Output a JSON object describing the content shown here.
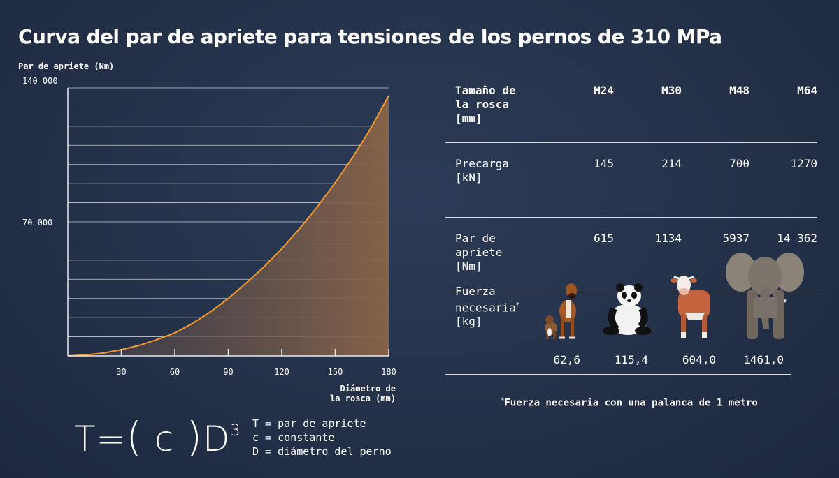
{
  "title": "Curva del par de apriete para tensiones de los pernos de 310 MPa",
  "chart_data": {
    "type": "area",
    "title": "Curva del par de apriete para tensiones de los pernos de 310 MPa",
    "ylabel": "Par de apriete (Nm)",
    "xlabel_line1": "Diámetro de",
    "xlabel_line2": "la rosca (mm)",
    "xlim": [
      0,
      180
    ],
    "ylim": [
      0,
      140000
    ],
    "y_ticks": [
      {
        "value": 70000,
        "label": "70 000"
      },
      {
        "value": 140000,
        "label": "140 000"
      }
    ],
    "x_ticks": [
      {
        "value": 30,
        "label": "30"
      },
      {
        "value": 60,
        "label": "60"
      },
      {
        "value": 90,
        "label": "90"
      },
      {
        "value": 120,
        "label": "120"
      },
      {
        "value": 150,
        "label": "150"
      },
      {
        "value": 180,
        "label": "180"
      }
    ],
    "grid_y_step": 10000,
    "x": [
      0,
      10,
      20,
      30,
      40,
      50,
      60,
      70,
      80,
      90,
      100,
      110,
      120,
      130,
      140,
      150,
      160,
      170,
      180
    ],
    "y": [
      0,
      500,
      1500,
      3200,
      5500,
      8500,
      12000,
      17000,
      23000,
      30000,
      38000,
      46500,
      56000,
      66500,
      78000,
      90500,
      104000,
      119000,
      136000
    ],
    "line_color": "#f39a2b",
    "fill_color": "#7a5a47"
  },
  "formula": {
    "T": "T",
    "eq": "=",
    "lparen": "(",
    "c": "c",
    "rparen": ")",
    "D": "D",
    "exp": "3"
  },
  "legend": [
    "T = par de apriete",
    "c = constante",
    "D = diámetro del perno"
  ],
  "table": {
    "header_label_line1": "Tamaño de",
    "header_label_line2": "la rosca",
    "header_label_line3": "[mm]",
    "sizes": [
      "M24",
      "M30",
      "M48",
      "M64"
    ],
    "preload_line1": "Precarga",
    "preload_line2": "[kN]",
    "preload": [
      "145",
      "214",
      "700",
      "1270"
    ],
    "torque_line1": "Par de",
    "torque_line2": "apriete",
    "torque_line3": "[Nm]",
    "torque": [
      "615",
      "1134",
      "5937",
      "14 362"
    ],
    "force_line1": "Fuerza",
    "force_line2": "necesaria",
    "force_mark": "*",
    "force_line3": "[kg]",
    "force": [
      "62,6",
      "115,4",
      "604,0",
      "1461,0"
    ],
    "animals": [
      "dog-icon",
      "panda-icon",
      "cow-icon",
      "elephant-icon"
    ]
  },
  "footnote_mark": "*",
  "footnote": "Fuerza necesaria con una palanca de 1 metro"
}
